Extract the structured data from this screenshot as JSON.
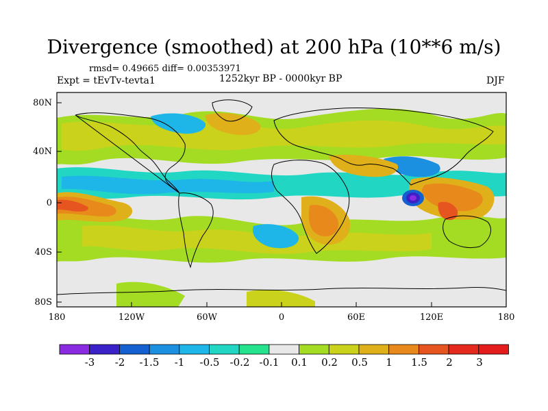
{
  "title": "Divergence (smoothed) at 200 hPa (10**6 m/s)",
  "stats": "rmsd= 0.49665  diff= 0.00353971",
  "experiment": "Expt = tEvTv-tevta1",
  "period": "1252kyr BP - 0000kyr BP",
  "season": "DJF",
  "axes": {
    "y_ticks": [
      "80N",
      "40N",
      "0",
      "40S",
      "80S"
    ],
    "x_ticks": [
      "180",
      "120W",
      "60W",
      "0",
      "60E",
      "120E",
      "180"
    ]
  },
  "colorbar": {
    "labels": [
      "-3",
      "-2",
      "-1.5",
      "-1",
      "-0.5",
      "-0.2",
      "-0.1",
      "0.1",
      "0.2",
      "0.5",
      "1",
      "1.5",
      "2",
      "3"
    ],
    "colors": [
      "#8a2be2",
      "#3a22c8",
      "#1560d0",
      "#1b8fe0",
      "#1eb5e8",
      "#22d6c4",
      "#25e38c",
      "#e8e8e8",
      "#a4dc24",
      "#cbd21c",
      "#e0b01a",
      "#e8891c",
      "#e65520",
      "#e42a1c",
      "#e41c1c"
    ]
  },
  "colors": {
    "background_fill": "#e8e8e8",
    "coast": "#000000"
  }
}
